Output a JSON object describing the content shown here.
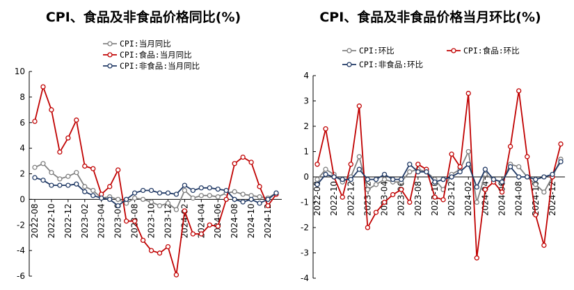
{
  "chart_data": [
    {
      "type": "line",
      "title": "CPI、食品及非食品价格同比(%)",
      "ylim": [
        -6,
        10
      ],
      "yticks": [
        -6,
        -4,
        -2,
        0,
        2,
        4,
        6,
        8,
        10
      ],
      "x": [
        "2022-08",
        "2022-09",
        "2022-10",
        "2022-11",
        "2022-12",
        "2023-01",
        "2023-02",
        "2023-03",
        "2023-04",
        "2023-05",
        "2023-06",
        "2023-07",
        "2023-08",
        "2023-09",
        "2023-10",
        "2023-11",
        "2023-12",
        "2024-01",
        "2024-02",
        "2024-03",
        "2024-04",
        "2024-05",
        "2024-06",
        "2024-07",
        "2024-08",
        "2024-09",
        "2024-10",
        "2024-11",
        "2024-12",
        "2025-01"
      ],
      "xtick_labels": [
        "2022-08",
        "2022-10",
        "2022-12",
        "2023-02",
        "2023-04",
        "2023-06",
        "2023-08",
        "2023-10",
        "2023-12",
        "2024-02",
        "2024-04",
        "2024-06",
        "2024-08",
        "2024-10",
        "2024-12"
      ],
      "legend": "top-center",
      "series": [
        {
          "name": "CPI:当月同比",
          "color": "#808080",
          "values": [
            2.5,
            2.8,
            2.1,
            1.6,
            1.8,
            2.1,
            1.0,
            0.7,
            0.1,
            0.2,
            0.0,
            -0.3,
            0.1,
            0.0,
            -0.2,
            -0.5,
            -0.3,
            -0.8,
            0.7,
            0.1,
            0.3,
            0.3,
            0.2,
            0.5,
            0.6,
            0.4,
            0.3,
            0.2,
            0.1,
            0.5
          ]
        },
        {
          "name": "CPI:食品:当月同比",
          "color": "#C00000",
          "values": [
            6.1,
            8.8,
            7.0,
            3.7,
            4.8,
            6.2,
            2.6,
            2.4,
            0.4,
            1.0,
            2.3,
            -1.7,
            -1.7,
            -3.2,
            -4.0,
            -4.2,
            -3.7,
            -5.9,
            -0.9,
            -2.7,
            -2.7,
            -2.0,
            -2.1,
            0.0,
            2.8,
            3.3,
            2.9,
            1.0,
            -0.5,
            0.4
          ]
        },
        {
          "name": "CPI:非食品:当月同比",
          "color": "#1F3864",
          "values": [
            1.7,
            1.5,
            1.1,
            1.1,
            1.1,
            1.2,
            0.6,
            0.3,
            0.1,
            0.0,
            -0.5,
            0.0,
            0.5,
            0.7,
            0.7,
            0.5,
            0.5,
            0.4,
            1.1,
            0.7,
            0.9,
            0.9,
            0.8,
            0.7,
            0.0,
            -0.2,
            0.0,
            -0.3,
            0.0,
            0.5
          ]
        }
      ]
    },
    {
      "type": "line",
      "title": "CPI、食品及非食品价格当月环比(%)",
      "ylim": [
        -4,
        4
      ],
      "yticks": [
        -4,
        -3,
        -2,
        -1,
        0,
        1,
        2,
        3,
        4
      ],
      "x": [
        "2022-08",
        "2022-09",
        "2022-10",
        "2022-11",
        "2022-12",
        "2023-01",
        "2023-02",
        "2023-03",
        "2023-04",
        "2023-05",
        "2023-06",
        "2023-07",
        "2023-08",
        "2023-09",
        "2023-10",
        "2023-11",
        "2023-12",
        "2024-01",
        "2024-02",
        "2024-03",
        "2024-04",
        "2024-05",
        "2024-06",
        "2024-07",
        "2024-08",
        "2024-09",
        "2024-10",
        "2024-11",
        "2024-12",
        "2025-01"
      ],
      "xtick_labels": [
        "2022-08",
        "2022-10",
        "2022-12",
        "2023-02",
        "2023-04",
        "2023-06",
        "2023-08",
        "2023-10",
        "2023-12",
        "2024-02",
        "2024-04",
        "2024-06",
        "2024-08",
        "2024-10",
        "2024-12"
      ],
      "legend": "top",
      "series": [
        {
          "name": "CPI:环比",
          "color": "#808080",
          "values": [
            -0.1,
            0.3,
            0.1,
            -0.2,
            0.0,
            0.8,
            -0.5,
            -0.3,
            -0.1,
            -0.2,
            -0.2,
            0.2,
            0.3,
            0.2,
            -0.1,
            -0.5,
            0.1,
            0.3,
            1.0,
            -1.0,
            0.1,
            -0.1,
            -0.2,
            0.5,
            0.4,
            0.0,
            -0.3,
            -0.6,
            0.0,
            0.7
          ]
        },
        {
          "name": "CPI:食品:环比",
          "color": "#C00000",
          "values": [
            0.5,
            1.9,
            0.0,
            -0.8,
            0.5,
            2.8,
            -2.0,
            -1.4,
            -1.0,
            -0.7,
            -0.5,
            -1.0,
            0.5,
            0.3,
            -0.8,
            -0.9,
            0.9,
            0.4,
            3.3,
            -3.2,
            -0.5,
            -0.2,
            -0.6,
            1.2,
            3.4,
            0.8,
            -1.5,
            -2.7,
            0.0,
            1.3
          ]
        },
        {
          "name": "CPI:非食品:环比",
          "color": "#1F3864",
          "values": [
            -0.3,
            0.1,
            0.0,
            -0.1,
            -0.1,
            0.3,
            -0.1,
            -0.1,
            0.1,
            -0.1,
            -0.1,
            0.5,
            0.2,
            0.2,
            -0.2,
            -0.1,
            0.0,
            0.2,
            0.5,
            -0.4,
            0.3,
            -0.1,
            -0.2,
            0.4,
            0.0,
            0.0,
            -0.1,
            0.0,
            0.1,
            0.6
          ]
        }
      ]
    }
  ]
}
